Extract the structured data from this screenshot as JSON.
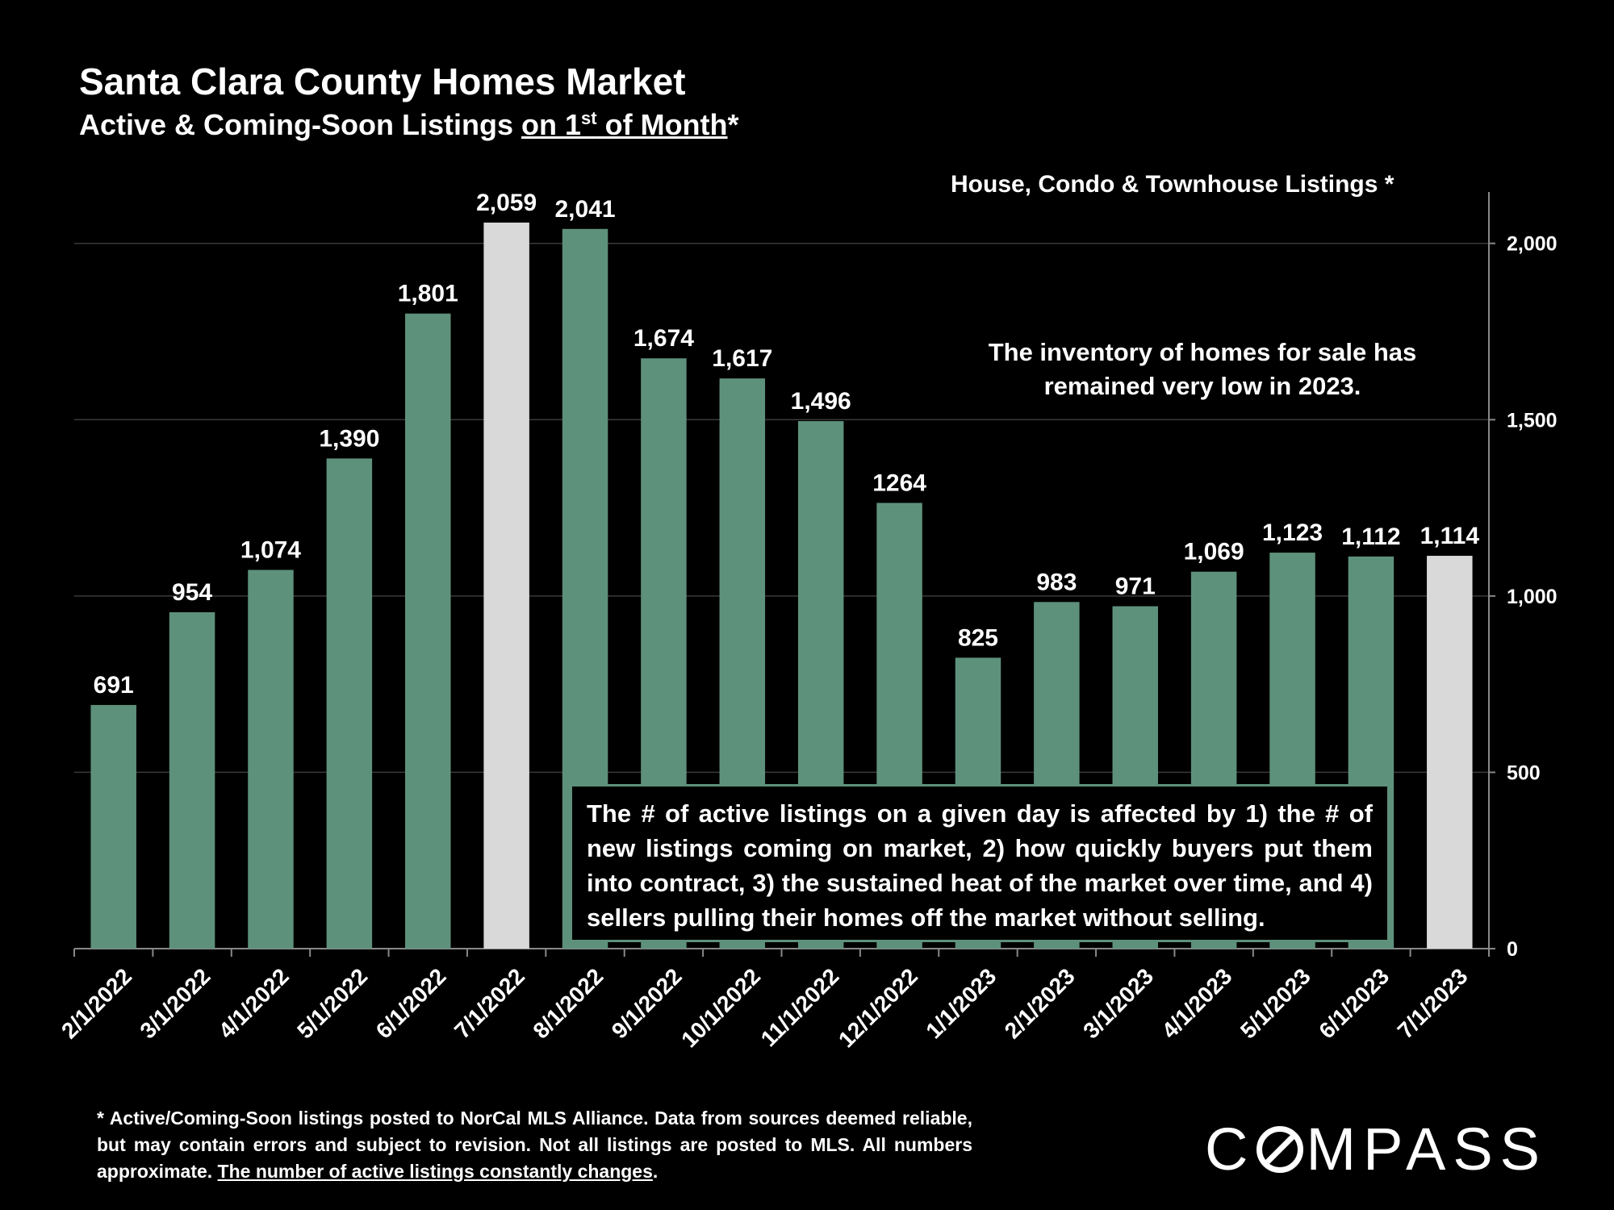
{
  "header": {
    "title": "Santa Clara County Homes Market",
    "subtitle_prefix": "Active & Coming-Soon Listings ",
    "subtitle_underlined_a": "on 1",
    "subtitle_sup": "st",
    "subtitle_underlined_b": " of Month",
    "subtitle_suffix": "*"
  },
  "legend_note": "House, Condo & Townhouse Listings *",
  "callouts": {
    "top": "The inventory of homes for sale has remained very low in 2023.",
    "box": "The # of active listings on a given day is affected by 1) the # of new listings coming on market, 2) how quickly buyers put them into contract, 3) the sustained heat of the market over time, and 4) sellers pulling their homes off the market without selling."
  },
  "footnote": {
    "text": "* Active/Coming-Soon listings posted to NorCal MLS Alliance.  Data from sources deemed reliable, but may contain errors and subject to revision.  Not all listings are posted to MLS. All numbers approximate. ",
    "underlined": "The number of active listings constantly changes",
    "end": "."
  },
  "logo": {
    "before": "C",
    "after": "MPASS"
  },
  "colors": {
    "bar": "#5e917c",
    "highlight_bar": "#d9d9d9",
    "background": "#000000",
    "text": "#ffffff",
    "grid": "#3a3a3a"
  },
  "chart_data": {
    "type": "bar",
    "categories": [
      "2/1/2022",
      "3/1/2022",
      "4/1/2022",
      "5/1/2022",
      "6/1/2022",
      "7/1/2022",
      "8/1/2022",
      "9/1/2022",
      "10/1/2022",
      "11/1/2022",
      "12/1/2022",
      "1/1/2023",
      "2/1/2023",
      "3/1/2023",
      "4/1/2023",
      "5/1/2023",
      "6/1/2023",
      "7/1/2023"
    ],
    "values": [
      691,
      954,
      1074,
      1390,
      1801,
      2059,
      2041,
      1674,
      1617,
      1496,
      1264,
      825,
      983,
      971,
      1069,
      1123,
      1112,
      1114
    ],
    "data_labels": [
      "691",
      "954",
      "1,074",
      "1,390",
      "1,801",
      "2,059",
      "2,041",
      "1,674",
      "1,617",
      "1,496",
      "1264",
      "825",
      "983",
      "971",
      "1,069",
      "1,123",
      "1,112",
      "1,114"
    ],
    "highlighted": [
      "7/1/2022",
      "7/1/2023"
    ],
    "ylim": [
      0,
      2100
    ],
    "yticks": [
      0,
      500,
      1000,
      1500,
      2000
    ],
    "ytick_labels": [
      "0",
      "500",
      "1,000",
      "1,500",
      "2,000"
    ],
    "yaxis_side": "right",
    "grid": true
  }
}
